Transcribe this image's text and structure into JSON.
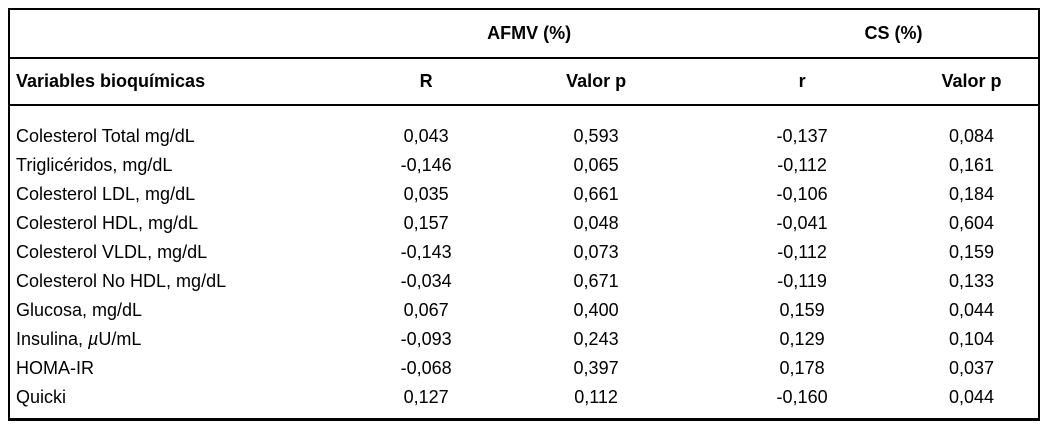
{
  "accent_colors": {
    "text": "#000000",
    "background": "#ffffff",
    "border": "#000000"
  },
  "chart_data": {
    "type": "table",
    "column_groups": [
      {
        "label": "",
        "span": 1
      },
      {
        "label": "AFMV (%)",
        "span": 2
      },
      {
        "label": "CS (%)",
        "span": 2
      }
    ],
    "columns": [
      "Variables bioquímicas",
      "R",
      "Valor p",
      "r",
      "Valor p"
    ],
    "rows": [
      {
        "variable": "Colesterol Total mg/dL",
        "values": [
          "0,043",
          "0,593",
          "-0,137",
          "0,084"
        ]
      },
      {
        "variable": "Triglicéridos, mg/dL",
        "values": [
          "-0,146",
          "0,065",
          "-0,112",
          "0,161"
        ]
      },
      {
        "variable": "Colesterol LDL, mg/dL",
        "values": [
          "0,035",
          "0,661",
          "-0,106",
          "0,184"
        ]
      },
      {
        "variable": "Colesterol HDL, mg/dL",
        "values": [
          "0,157",
          "0,048",
          "-0,041",
          "0,604"
        ]
      },
      {
        "variable": "Colesterol VLDL, mg/dL",
        "values": [
          "-0,143",
          "0,073",
          "-0,112",
          "0,159"
        ]
      },
      {
        "variable": "Colesterol No HDL, mg/dL",
        "values": [
          "-0,034",
          "0,671",
          "-0,119",
          "0,133"
        ]
      },
      {
        "variable": "Glucosa, mg/dL",
        "values": [
          "0,067",
          "0,400",
          "0,159",
          "0,044"
        ]
      },
      {
        "variable": "Insulina, µU/mL",
        "variable_parts": {
          "pre": "Insulina, ",
          "mu": "µ",
          "post": "U/mL"
        },
        "values": [
          "-0,093",
          "0,243",
          "0,129",
          "0,104"
        ]
      },
      {
        "variable": "HOMA-IR",
        "values": [
          "-0,068",
          "0,397",
          "0,178",
          "0,037"
        ]
      },
      {
        "variable": "Quicki",
        "values": [
          "0,127",
          "0,112",
          "-0,160",
          "0,044"
        ]
      }
    ]
  }
}
